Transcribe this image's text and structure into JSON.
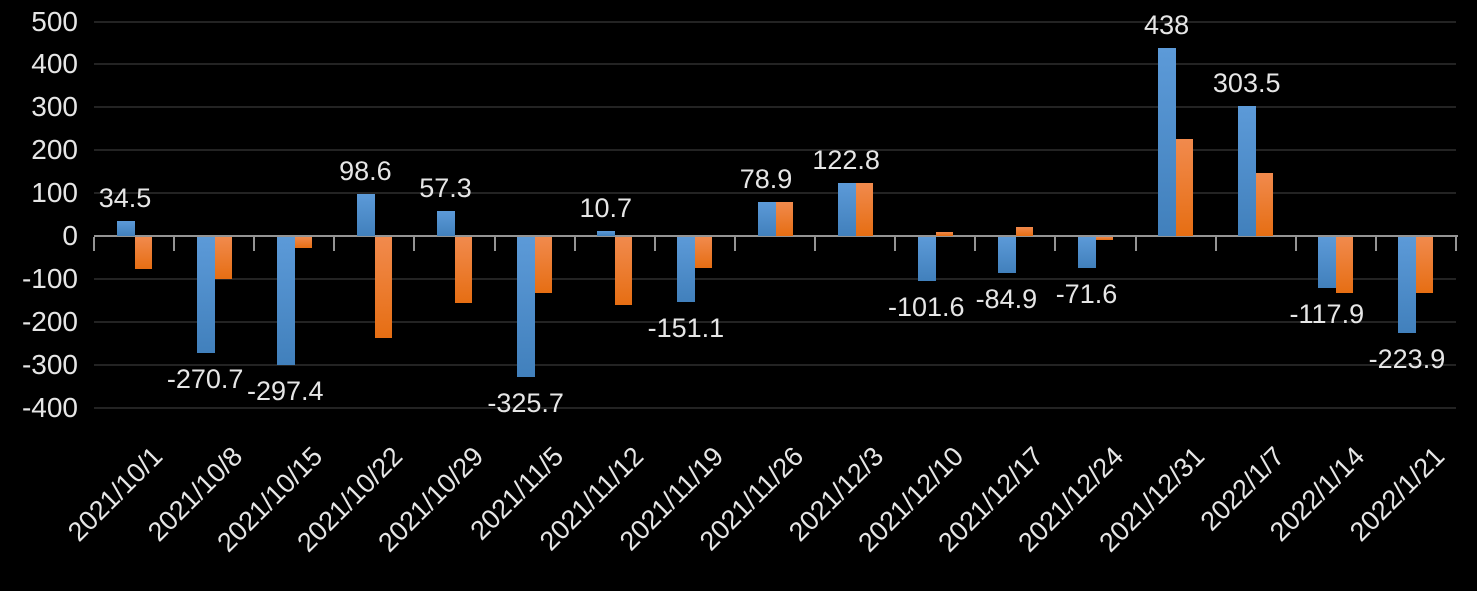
{
  "chart_data": {
    "type": "bar",
    "title": "",
    "categories": [
      "2021/10/1",
      "2021/10/8",
      "2021/10/15",
      "2021/10/22",
      "2021/10/29",
      "2021/11/5",
      "2021/11/12",
      "2021/11/19",
      "2021/11/26",
      "2021/12/3",
      "2021/12/10",
      "2021/12/17",
      "2021/12/24",
      "2021/12/31",
      "2022/1/7",
      "2022/1/14",
      "2022/1/21"
    ],
    "series": [
      {
        "name": "blue-series",
        "color": "#4E8CCB",
        "gradient_top": "#5C9AD8",
        "gradient_bottom": "#4180BC",
        "values": [
          34.5,
          -270.7,
          -297.4,
          98.6,
          57.3,
          -325.7,
          10.7,
          -151.1,
          78.9,
          122.8,
          -101.6,
          -84.9,
          -71.6,
          438,
          303.5,
          -117.9,
          -223.9
        ],
        "data_labels_visible": true
      },
      {
        "name": "orange-series",
        "color": "#ED7D31",
        "gradient_top": "#F18A4D",
        "gradient_bottom": "#E66E13",
        "values": [
          -75,
          -98,
          -25,
          -236,
          -155,
          -130,
          -158,
          -73,
          79,
          123,
          10,
          20,
          -8,
          225,
          146,
          -130,
          -131
        ],
        "data_labels_visible": false
      }
    ],
    "y_axis": {
      "min": -400,
      "max": 500,
      "tick_step": 100,
      "ticks": [
        500,
        400,
        300,
        200,
        100,
        0,
        -100,
        -200,
        -300,
        -400
      ]
    },
    "x_axis": {
      "label_rotation_deg": 45
    },
    "colors": {
      "background": "#000000",
      "axis_line": "#949494",
      "gridline": "#232323",
      "text": "#E6E6E6"
    },
    "legend": false,
    "grid": true
  }
}
